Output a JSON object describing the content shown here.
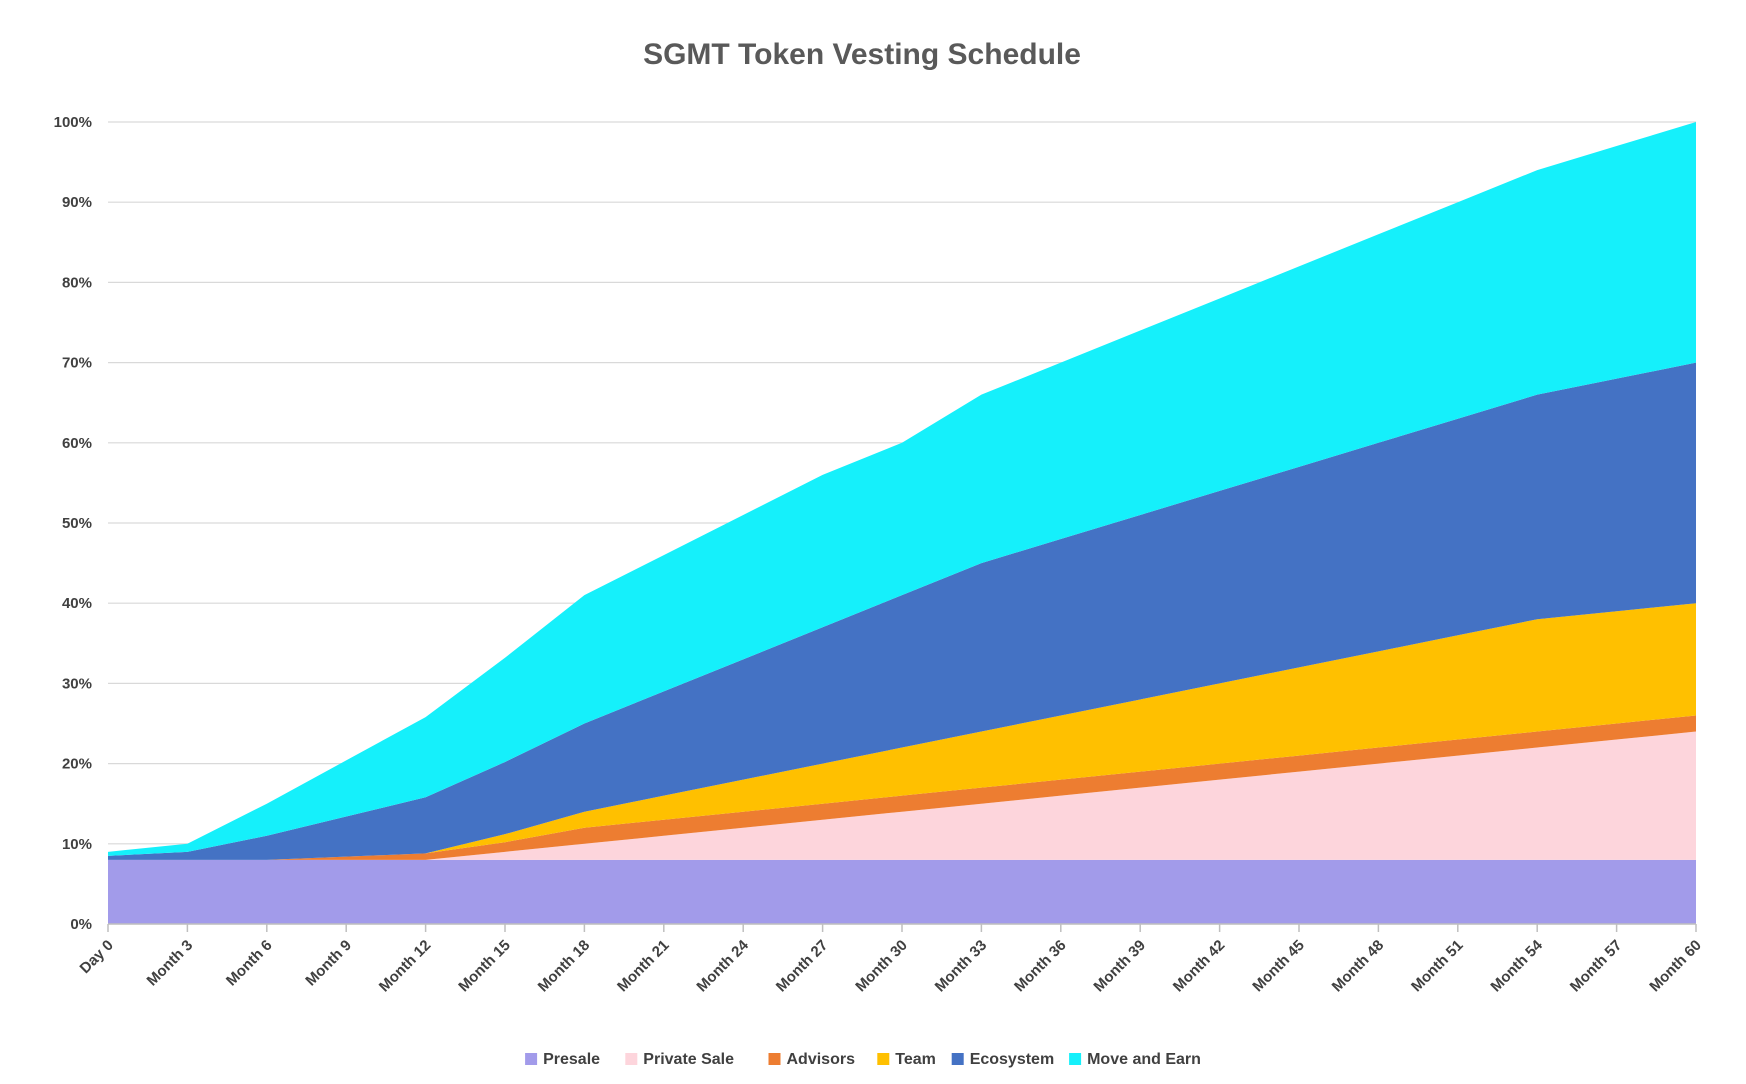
{
  "chart_data": {
    "type": "area",
    "stacked": true,
    "title": "SGMT Token Vesting Schedule",
    "xlabel": "",
    "ylabel": "",
    "ylim": [
      0,
      100
    ],
    "y_ticks": [
      "0%",
      "10%",
      "20%",
      "30%",
      "40%",
      "50%",
      "60%",
      "70%",
      "80%",
      "90%",
      "100%"
    ],
    "categories": [
      "Day 0",
      "Month 3",
      "Month 6",
      "Month 9",
      "Month 12",
      "Month 15",
      "Month 18",
      "Month 21",
      "Month 24",
      "Month 27",
      "Month 30",
      "Month 33",
      "Month 36",
      "Month 39",
      "Month 42",
      "Month 45",
      "Month 48",
      "Month 51",
      "Month 54",
      "Month 57",
      "Month 60"
    ],
    "grid": true,
    "legend_position": "bottom",
    "series": [
      {
        "name": "Presale",
        "color": "#a29bea",
        "values": [
          8,
          8,
          8,
          8,
          8,
          8,
          8,
          8,
          8,
          8,
          8,
          8,
          8,
          8,
          8,
          8,
          8,
          8,
          8,
          8,
          8
        ]
      },
      {
        "name": "Private Sale",
        "color": "#fdd5dc",
        "values": [
          0,
          0,
          0,
          0,
          0,
          1,
          2,
          3,
          4,
          5,
          6,
          7,
          8,
          9,
          10,
          11,
          12,
          13,
          14,
          15,
          16
        ]
      },
      {
        "name": "Advisors",
        "color": "#ed7d31",
        "values": [
          0,
          0,
          0,
          0.4,
          0.8,
          1.2,
          2,
          2,
          2,
          2,
          2,
          2,
          2,
          2,
          2,
          2,
          2,
          2,
          2,
          2,
          2
        ]
      },
      {
        "name": "Team",
        "color": "#ffc000",
        "values": [
          0,
          0,
          0,
          0,
          0,
          1,
          2,
          3,
          4,
          5,
          6,
          7,
          8,
          9,
          10,
          11,
          12,
          13,
          14,
          14,
          14
        ]
      },
      {
        "name": "Ecosystem",
        "color": "#4472c4",
        "values": [
          0.5,
          1,
          3,
          5,
          7,
          9,
          11,
          13,
          15,
          17,
          19,
          21,
          22,
          23,
          24,
          25,
          26,
          27,
          28,
          29,
          30
        ]
      },
      {
        "name": "Move and Earn",
        "color": "#15f0fb",
        "values": [
          0.5,
          1,
          4,
          7,
          10,
          13,
          16,
          17,
          18,
          19,
          19,
          21,
          22,
          23,
          24,
          25,
          26,
          27,
          28,
          29,
          30
        ]
      }
    ]
  }
}
